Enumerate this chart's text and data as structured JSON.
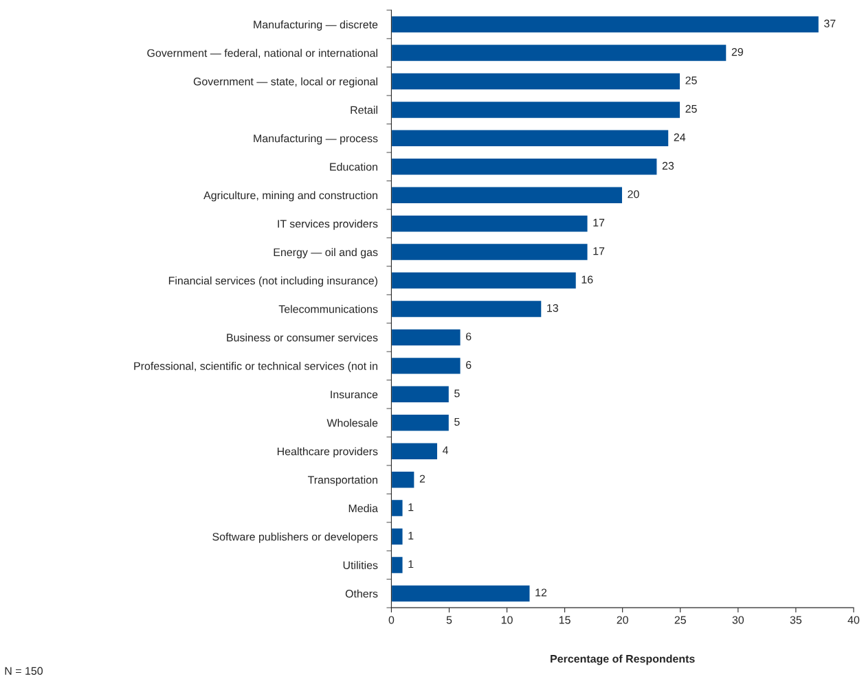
{
  "chart_data": {
    "type": "bar",
    "orientation": "horizontal",
    "xlabel": "Percentage of Respondents",
    "categories": [
      "Manufacturing — discrete",
      "Government — federal, national or international",
      "Government — state, local or regional",
      "Retail",
      "Manufacturing — process",
      "Education",
      "Agriculture, mining and construction",
      "IT services providers",
      "Energy — oil and gas",
      "Financial services (not including insurance)",
      "Telecommunications",
      "Business or consumer services",
      "Professional, scientific or technical services (not in",
      "Insurance",
      "Wholesale",
      "Healthcare providers",
      "Transportation",
      "Media",
      "Software publishers or developers",
      "Utilities",
      "Others"
    ],
    "values": [
      37,
      29,
      25,
      25,
      24,
      23,
      20,
      17,
      17,
      16,
      13,
      6,
      6,
      5,
      5,
      4,
      2,
      1,
      1,
      1,
      12
    ],
    "color": "#00529b",
    "data_labels": true,
    "xlim": [
      0,
      40
    ],
    "xticks": [
      0,
      5,
      10,
      15,
      20,
      25,
      30,
      35,
      40
    ],
    "grid": false,
    "legend": false,
    "annotations": [
      "N = 150"
    ]
  }
}
